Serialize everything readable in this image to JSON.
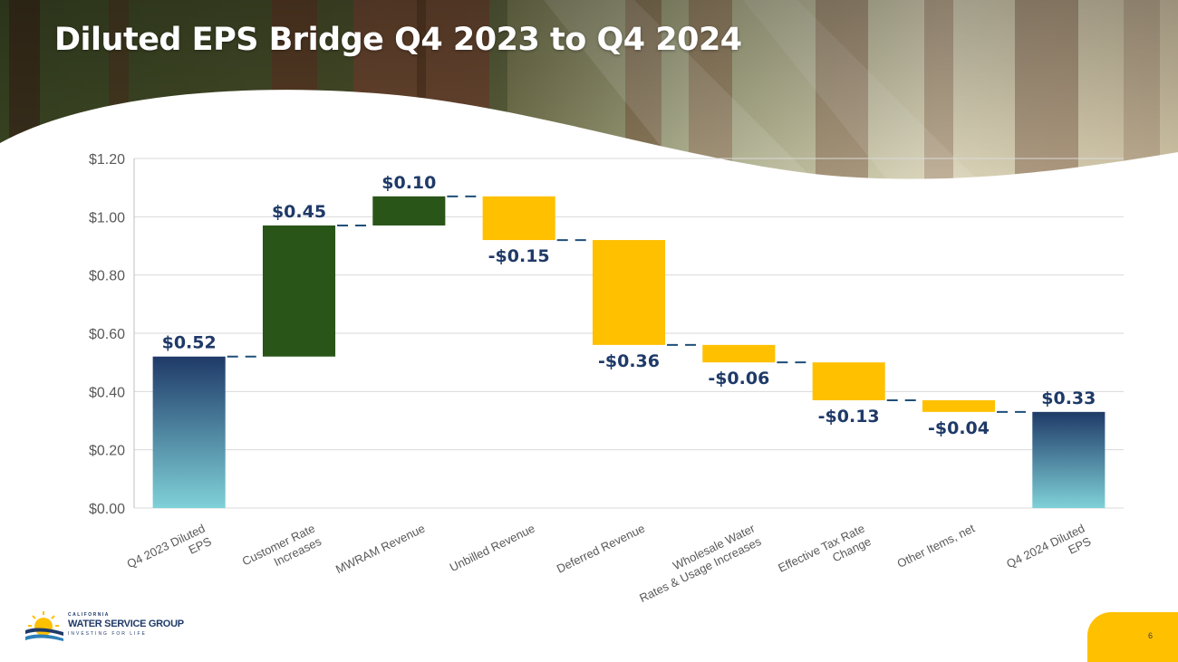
{
  "slide": {
    "title": "Diluted EPS Bridge Q4 2023 to Q4 2024",
    "page_number": "6"
  },
  "logo": {
    "caption": "CALIFORNIA",
    "name": "WATER SERVICE GROUP",
    "tagline": "INVESTING FOR LIFE"
  },
  "colors": {
    "total_top": "#1f3a68",
    "total_bottom": "#7fd1d8",
    "increase": "#2a5518",
    "decrease": "#ffc000",
    "connector": "#1f4e79",
    "label": "#1f3a68",
    "grid": "#d9d9d9",
    "axis_text": "#595959"
  },
  "chart_data": {
    "type": "waterfall",
    "title": "Diluted EPS Bridge Q4 2023 to Q4 2024",
    "xlabel": "",
    "ylabel": "",
    "ylim": [
      0,
      1.2
    ],
    "yticks": [
      0,
      0.2,
      0.4,
      0.6,
      0.8,
      1.0,
      1.2
    ],
    "ytick_labels": [
      "$0.00",
      "$0.20",
      "$0.40",
      "$0.60",
      "$0.80",
      "$1.00",
      "$1.20"
    ],
    "grid": true,
    "categories": [
      [
        "Q4 2023 Diluted",
        "EPS"
      ],
      [
        "Customer Rate",
        "Increases"
      ],
      [
        "MWRAM Revenue"
      ],
      [
        "Unbilled Revenue"
      ],
      [
        "Deferred Revenue"
      ],
      [
        "Wholesale Water",
        "Rates & Usage Increases"
      ],
      [
        "Effective Tax Rate",
        "Change"
      ],
      [
        "Other Items, net"
      ],
      [
        "Q4 2024 Diluted",
        "EPS"
      ]
    ],
    "values": [
      0.52,
      0.45,
      0.1,
      -0.15,
      -0.36,
      -0.06,
      -0.13,
      -0.04,
      0.33
    ],
    "kinds": [
      "total",
      "increase",
      "increase",
      "decrease",
      "decrease",
      "decrease",
      "decrease",
      "decrease",
      "total"
    ],
    "data_labels": [
      "$0.52",
      "$0.45",
      "$0.10",
      "-$0.15",
      "-$0.36",
      "-$0.06",
      "-$0.13",
      "-$0.04",
      "$0.33"
    ]
  }
}
